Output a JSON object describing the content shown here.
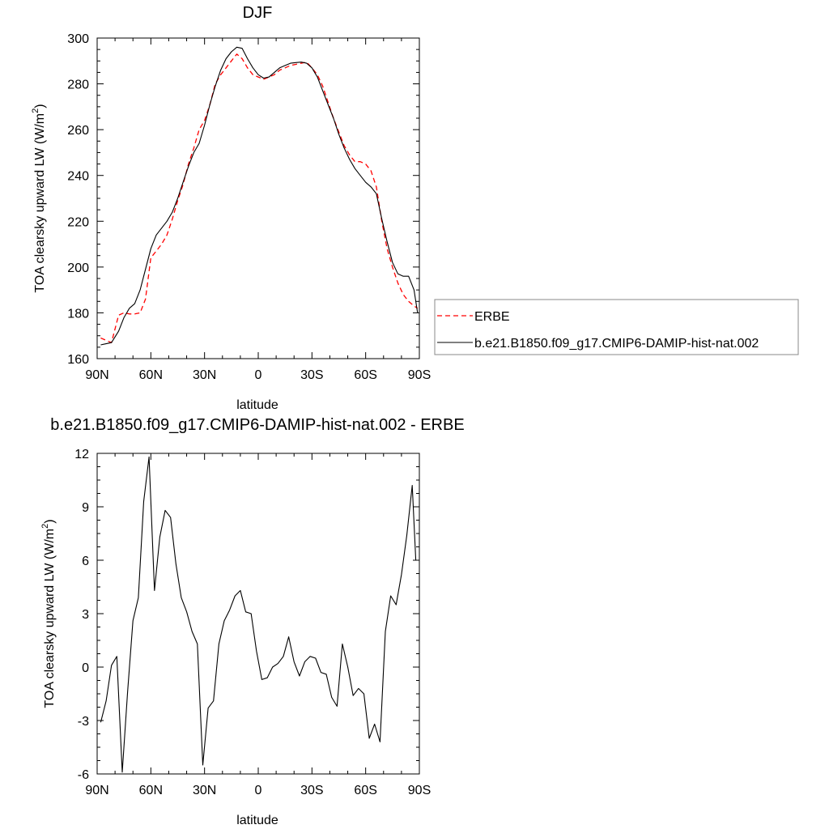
{
  "chart_data": [
    {
      "type": "line",
      "title": "DJF",
      "xlabel": "latitude",
      "ylabel": "TOA clearsky upward LW (W/m",
      "ylabel_sup": "2",
      "ylabel_close": ")",
      "xlim": [
        -90,
        90
      ],
      "ylim": [
        160,
        300
      ],
      "xticks": [
        {
          "value": -90,
          "label": "90N"
        },
        {
          "value": -60,
          "label": "60N"
        },
        {
          "value": -30,
          "label": "30N"
        },
        {
          "value": 0,
          "label": "0"
        },
        {
          "value": 30,
          "label": "30S"
        },
        {
          "value": 60,
          "label": "60S"
        },
        {
          "value": 90,
          "label": "90S"
        }
      ],
      "yticks": [
        160,
        180,
        200,
        220,
        240,
        260,
        280,
        300
      ],
      "grid": false,
      "legend_placement": "right",
      "series": [
        {
          "name": "ERBE",
          "color": "#ff0000",
          "dash": "dashed",
          "x": [
            -88,
            -85,
            -82,
            -78,
            -75,
            -72,
            -69,
            -66,
            -63,
            -60,
            -57,
            -54,
            -51,
            -48,
            -45,
            -42,
            -39,
            -36,
            -33,
            -30,
            -27,
            -24,
            -21,
            -18,
            -15,
            -12,
            -9,
            -6,
            -3,
            0,
            3,
            6,
            9,
            12,
            15,
            18,
            21,
            24,
            27,
            30,
            33,
            36,
            39,
            42,
            45,
            48,
            51,
            54,
            57,
            60,
            63,
            66,
            69,
            72,
            75,
            78,
            81,
            84,
            87,
            89
          ],
          "values": [
            169,
            168,
            167,
            179,
            180,
            179.5,
            179.5,
            180,
            186,
            204,
            207,
            210,
            214,
            221,
            229,
            236,
            245,
            252,
            260,
            264,
            271,
            280,
            284,
            287,
            290,
            293,
            291,
            287,
            284,
            283,
            282,
            283,
            284,
            286,
            287,
            288,
            288.5,
            289,
            289.5,
            287,
            284,
            279,
            272,
            265,
            259,
            253,
            249,
            246,
            246,
            245,
            242,
            235,
            220,
            208,
            200,
            193,
            188,
            185,
            183,
            182
          ]
        },
        {
          "name": "b.e21.B1850.f09_g17.CMIP6-DAMIP-hist-nat.002",
          "color": "#000000",
          "dash": "solid",
          "x": [
            -88,
            -85,
            -82,
            -78,
            -75,
            -72,
            -69,
            -66,
            -63,
            -60,
            -57,
            -54,
            -51,
            -48,
            -45,
            -42,
            -39,
            -36,
            -33,
            -30,
            -27,
            -24,
            -21,
            -18,
            -15,
            -12,
            -9,
            -6,
            -3,
            0,
            3,
            6,
            9,
            12,
            15,
            18,
            21,
            24,
            27,
            30,
            33,
            36,
            39,
            42,
            45,
            48,
            51,
            54,
            57,
            60,
            63,
            66,
            69,
            72,
            75,
            78,
            81,
            84,
            87,
            89
          ],
          "values": [
            166,
            166.5,
            167,
            172,
            178,
            182,
            184,
            190,
            199,
            208,
            214,
            217,
            220,
            224,
            230,
            237,
            244,
            250,
            254,
            262,
            271,
            279,
            286,
            291,
            294,
            296,
            295.5,
            291,
            287,
            284,
            282.5,
            283,
            285,
            287,
            288,
            289,
            289.3,
            289.5,
            289,
            287,
            283,
            277,
            271,
            265,
            258,
            252,
            247,
            243,
            240,
            237,
            235,
            232,
            221,
            211,
            202,
            197,
            196,
            196,
            190,
            180
          ]
        }
      ]
    },
    {
      "type": "line",
      "title": "b.e21.B1850.f09_g17.CMIP6-DAMIP-hist-nat.002 - ERBE",
      "xlabel": "latitude",
      "ylabel": "TOA clearsky upward LW (W/m",
      "ylabel_sup": "2",
      "ylabel_close": ")",
      "xlim": [
        -90,
        90
      ],
      "ylim": [
        -6,
        12
      ],
      "xticks": [
        {
          "value": -90,
          "label": "90N"
        },
        {
          "value": -60,
          "label": "60N"
        },
        {
          "value": -30,
          "label": "30N"
        },
        {
          "value": 0,
          "label": "0"
        },
        {
          "value": 30,
          "label": "30S"
        },
        {
          "value": 60,
          "label": "60S"
        },
        {
          "value": 90,
          "label": "90S"
        }
      ],
      "yticks": [
        -6,
        -3,
        0,
        3,
        6,
        9,
        12
      ],
      "grid": false,
      "series": [
        {
          "color": "#000000",
          "dash": "solid",
          "x": [
            -88,
            -85,
            -82,
            -79,
            -76,
            -73,
            -70,
            -67,
            -64,
            -61,
            -58,
            -55,
            -52,
            -49,
            -46,
            -43,
            -40,
            -37,
            -34,
            -31,
            -28,
            -25,
            -22,
            -19,
            -16,
            -13,
            -10,
            -7,
            -4,
            -1,
            2,
            5,
            8,
            11,
            14,
            17,
            20,
            23,
            26,
            29,
            32,
            35,
            38,
            41,
            44,
            47,
            50,
            53,
            56,
            59,
            62,
            65,
            68,
            71,
            74,
            77,
            80,
            83,
            86,
            88
          ],
          "values": [
            -3.1,
            -1.9,
            0.1,
            0.6,
            -5.9,
            -1.4,
            2.6,
            3.9,
            9.3,
            11.8,
            4.3,
            7.3,
            8.8,
            8.4,
            5.8,
            3.9,
            3.1,
            2.0,
            1.3,
            -5.5,
            -2.3,
            -1.9,
            1.3,
            2.6,
            3.2,
            4.0,
            4.3,
            3.1,
            3.0,
            0.9,
            -0.7,
            -0.6,
            0.0,
            0.2,
            0.6,
            1.7,
            0.3,
            -0.5,
            0.3,
            0.6,
            0.5,
            -0.3,
            -0.4,
            -1.7,
            -2.2,
            1.3,
            0.0,
            -1.6,
            -1.2,
            -1.5,
            -4.0,
            -3.2,
            -4.2,
            2.0,
            4.0,
            3.5,
            5.2,
            7.4,
            10.2,
            6.0
          ]
        }
      ]
    }
  ]
}
